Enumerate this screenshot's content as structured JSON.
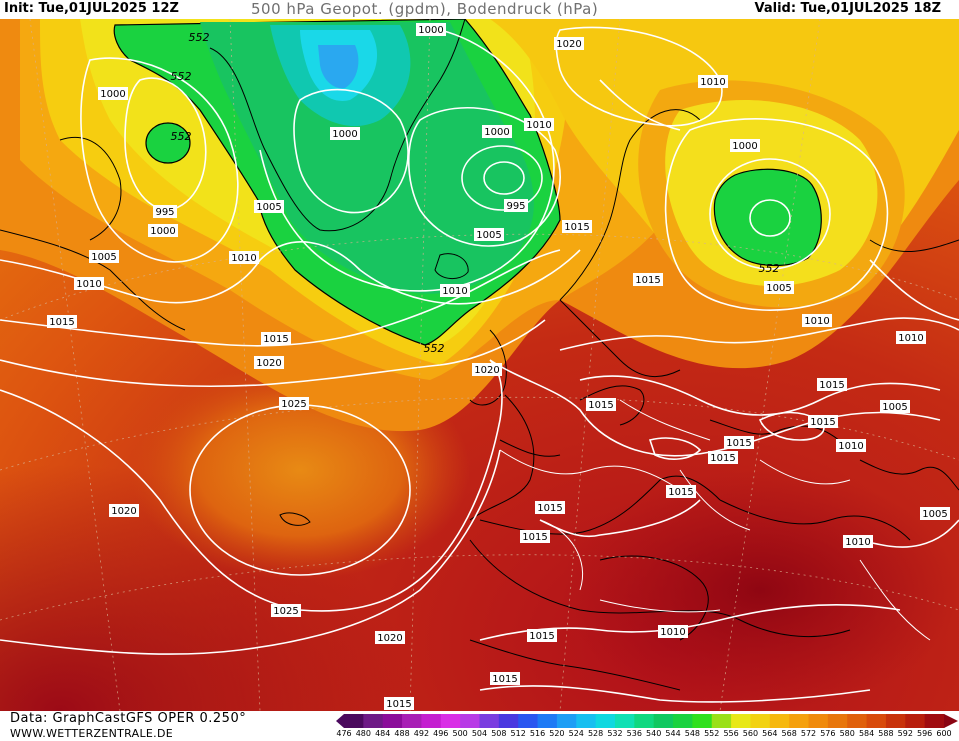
{
  "header": {
    "init": "Init: Tue,01JUL2025 12Z",
    "title": "500 hPa Geopot. (gpdm), Bodendruck (hPa)",
    "valid": "Valid: Tue,01JUL2025 18Z"
  },
  "footer": {
    "source": "Data: GraphCastGFS OPER 0.250°",
    "site": "WWW.WETTERZENTRALE.DE"
  },
  "legend": {
    "values": [
      "476",
      "480",
      "484",
      "488",
      "492",
      "496",
      "500",
      "504",
      "508",
      "512",
      "516",
      "520",
      "524",
      "528",
      "532",
      "536",
      "540",
      "544",
      "548",
      "552",
      "556",
      "560",
      "564",
      "568",
      "572",
      "576",
      "580",
      "584",
      "588",
      "592",
      "596",
      "600"
    ],
    "colors": [
      "#4b0a5e",
      "#6e1a86",
      "#8b0d9a",
      "#a81fb5",
      "#c41fd0",
      "#d92fe6",
      "#b83be6",
      "#7a3de0",
      "#4a38e0",
      "#2a56f0",
      "#1e7af5",
      "#1e9ef5",
      "#18bff0",
      "#10d8e0",
      "#10e0b4",
      "#10d880",
      "#10c860",
      "#1ad240",
      "#30e01e",
      "#9ae018",
      "#e8e818",
      "#f2d212",
      "#f6b80e",
      "#f5a00c",
      "#f08a0a",
      "#e8760a",
      "#e0600a",
      "#d84a0a",
      "#c8320a",
      "#b81e0c",
      "#a00c10",
      "#8a0412"
    ]
  },
  "isobars": {
    "pressure": [
      "1000",
      "1000",
      "1000",
      "1000",
      "995",
      "995",
      "1000",
      "1005",
      "1005",
      "1010",
      "1010",
      "1010",
      "1010",
      "1015",
      "1015",
      "1020",
      "1025",
      "1020",
      "1025",
      "1020",
      "1015",
      "1015",
      "1015",
      "1015",
      "1020",
      "1015",
      "1015",
      "1015",
      "1015",
      "1010",
      "1005",
      "1010",
      "1010",
      "1005",
      "1010",
      "1015",
      "1015",
      "1015",
      "1010",
      "1005",
      "1010",
      "1015",
      "1020",
      "1005",
      "1000",
      "1015"
    ],
    "height": [
      "552",
      "552",
      "552",
      "552",
      "552"
    ]
  }
}
